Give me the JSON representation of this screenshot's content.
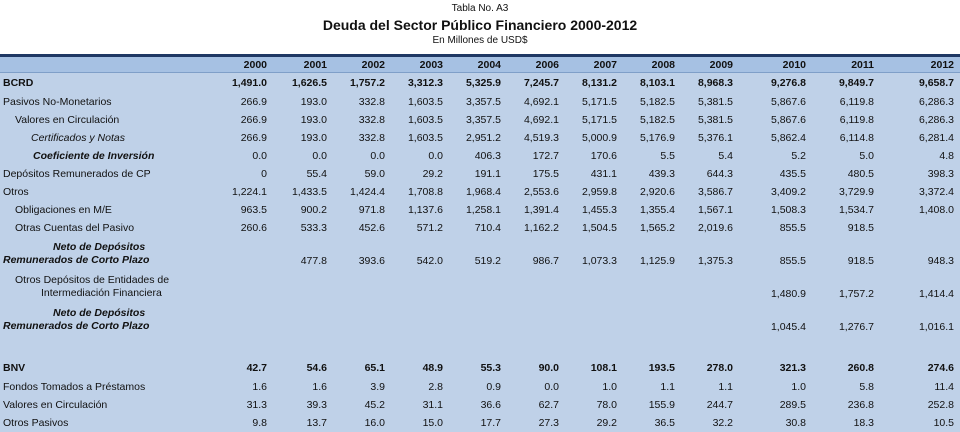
{
  "header": {
    "table_no": "Tabla No. A3",
    "title": "Deuda del Sector Público Financiero 2000-2012",
    "subtitle": "En Millones de USD$"
  },
  "table": {
    "columns": [
      "2000",
      "2001",
      "2002",
      "2003",
      "2004",
      "2006",
      "2007",
      "2008",
      "2009",
      "2010",
      "2011",
      "2012"
    ],
    "rows": [
      {
        "label": [
          "BCRD"
        ],
        "values": [
          "1,491.0",
          "1,626.5",
          "1,757.2",
          "3,312.3",
          "5,325.9",
          "7,245.7",
          "8,131.2",
          "8,103.1",
          "8,968.3",
          "9,276.8",
          "9,849.7",
          "9,658.7"
        ]
      },
      {
        "label": [
          "Pasivos No-Monetarios"
        ],
        "values": [
          "266.9",
          "193.0",
          "332.8",
          "1,603.5",
          "3,357.5",
          "4,692.1",
          "5,171.5",
          "5,182.5",
          "5,381.5",
          "5,867.6",
          "6,119.8",
          "6,286.3"
        ]
      },
      {
        "label": [
          "Valores en Circulación"
        ],
        "values": [
          "266.9",
          "193.0",
          "332.8",
          "1,603.5",
          "3,357.5",
          "4,692.1",
          "5,171.5",
          "5,182.5",
          "5,381.5",
          "5,867.6",
          "6,119.8",
          "6,286.3"
        ]
      },
      {
        "label": [
          "Certificados y Notas"
        ],
        "values": [
          "266.9",
          "193.0",
          "332.8",
          "1,603.5",
          "2,951.2",
          "4,519.3",
          "5,000.9",
          "5,176.9",
          "5,376.1",
          "5,862.4",
          "6,114.8",
          "6,281.4"
        ]
      },
      {
        "label": [
          "Coeficiente de Inversión"
        ],
        "values": [
          "0.0",
          "0.0",
          "0.0",
          "0.0",
          "406.3",
          "172.7",
          "170.6",
          "5.5",
          "5.4",
          "5.2",
          "5.0",
          "4.8"
        ]
      },
      {
        "label": [
          "Depósitos Remunerados de CP"
        ],
        "values": [
          "0",
          "55.4",
          "59.0",
          "29.2",
          "191.1",
          "175.5",
          "431.1",
          "439.3",
          "644.3",
          "435.5",
          "480.5",
          "398.3"
        ]
      },
      {
        "label": [
          "Otros"
        ],
        "values": [
          "1,224.1",
          "1,433.5",
          "1,424.4",
          "1,708.8",
          "1,968.4",
          "2,553.6",
          "2,959.8",
          "2,920.6",
          "3,586.7",
          "3,409.2",
          "3,729.9",
          "3,372.4"
        ]
      },
      {
        "label": [
          "Obligaciones en M/E"
        ],
        "values": [
          "963.5",
          "900.2",
          "971.8",
          "1,137.6",
          "1,258.1",
          "1,391.4",
          "1,455.3",
          "1,355.4",
          "1,567.1",
          "1,508.3",
          "1,534.7",
          "1,408.0"
        ]
      },
      {
        "label": [
          "Otras Cuentas del Pasivo"
        ],
        "values": [
          "260.6",
          "533.3",
          "452.6",
          "571.2",
          "710.4",
          "1,162.2",
          "1,504.5",
          "1,565.2",
          "2,019.6",
          "855.5",
          "918.5",
          null
        ]
      },
      {
        "label": [
          "Neto de Depósitos",
          "Remunerados de Corto Plazo"
        ],
        "values": [
          null,
          "477.8",
          "393.6",
          "542.0",
          "519.2",
          "986.7",
          "1,073.3",
          "1,125.9",
          "1,375.3",
          "855.5",
          "918.5",
          "948.3"
        ]
      },
      {
        "label": [
          "Otros Depósitos de Entidades de",
          "Intermediación Financiera"
        ],
        "values": [
          null,
          null,
          null,
          null,
          null,
          null,
          null,
          null,
          null,
          "1,480.9",
          "1,757.2",
          "1,414.4"
        ]
      },
      {
        "label": [
          "Neto de Depósitos",
          "Remunerados de Corto Plazo"
        ],
        "values": [
          null,
          null,
          null,
          null,
          null,
          null,
          null,
          null,
          null,
          "1,045.4",
          "1,276.7",
          "1,016.1"
        ]
      },
      {
        "label": [
          "BNV"
        ],
        "values": [
          "42.7",
          "54.6",
          "65.1",
          "48.9",
          "55.3",
          "90.0",
          "108.1",
          "193.5",
          "278.0",
          "321.3",
          "260.8",
          "274.6"
        ]
      },
      {
        "label": [
          "Fondos Tomados a Préstamos"
        ],
        "values": [
          "1.6",
          "1.6",
          "3.9",
          "2.8",
          "0.9",
          "0.0",
          "1.0",
          "1.1",
          "1.1",
          "1.0",
          "5.8",
          "11.4"
        ]
      },
      {
        "label": [
          "Valores en Circulación"
        ],
        "values": [
          "31.3",
          "39.3",
          "45.2",
          "31.1",
          "36.6",
          "62.7",
          "78.0",
          "155.9",
          "244.7",
          "289.5",
          "236.8",
          "252.8"
        ]
      },
      {
        "label": [
          "Otros Pasivos"
        ],
        "values": [
          "9.8",
          "13.7",
          "16.0",
          "15.0",
          "17.7",
          "27.3",
          "29.2",
          "36.5",
          "32.2",
          "30.8",
          "18.3",
          "10.5"
        ]
      }
    ]
  }
}
